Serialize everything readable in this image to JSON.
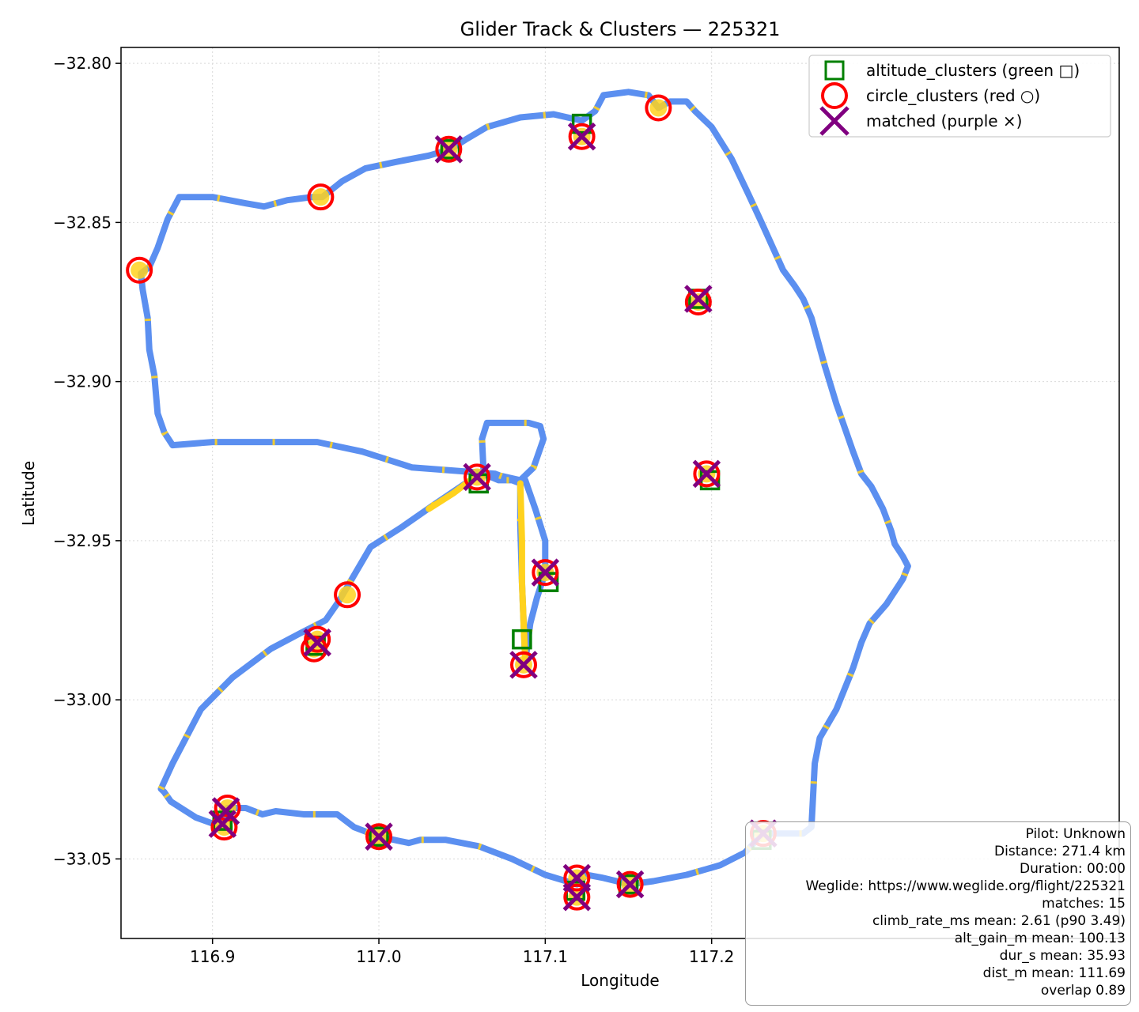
{
  "chart_data": {
    "type": "scatter",
    "title": "Glider Track & Clusters — 225321",
    "xlabel": "Longitude",
    "ylabel": "Latitude",
    "xlim": [
      116.845,
      117.445
    ],
    "ylim": [
      -33.075,
      -32.795
    ],
    "xticks": [
      116.9,
      117.0,
      117.1,
      117.2
    ],
    "xtick_labels": [
      "116.9",
      "117.0",
      "117.1",
      "117.2"
    ],
    "yticks": [
      -32.8,
      -32.85,
      -32.9,
      -32.95,
      -33.0,
      -33.05
    ],
    "ytick_labels": [
      "−32.80",
      "−32.85",
      "−32.90",
      "−32.95",
      "−33.00",
      "−33.05"
    ],
    "grid": true,
    "legend_position": "top-right",
    "colors": {
      "track": "#5b8ff0",
      "climb": "#ffd21e",
      "altitude_clusters": "#008000",
      "circle_clusters": "#ff0000",
      "matched": "#800080"
    },
    "series": [
      {
        "name": "altitude_clusters (green □)",
        "marker": "square",
        "points": [
          [
            117.06,
            -32.932
          ],
          [
            117.122,
            -32.819
          ],
          [
            117.199,
            -32.931
          ],
          [
            117.102,
            -32.963
          ],
          [
            117.086,
            -32.981
          ],
          [
            117.192,
            -32.874
          ],
          [
            116.906,
            -33.038
          ],
          [
            117.0,
            -33.043
          ],
          [
            117.118,
            -33.06
          ],
          [
            117.15,
            -33.058
          ],
          [
            117.23,
            -33.044
          ],
          [
            116.962,
            -32.983
          ],
          [
            117.043,
            -32.827
          ]
        ]
      },
      {
        "name": "circle_clusters (red ○)",
        "marker": "circle",
        "points": [
          [
            116.856,
            -32.865
          ],
          [
            116.965,
            -32.842
          ],
          [
            117.042,
            -32.827
          ],
          [
            117.122,
            -32.823
          ],
          [
            117.168,
            -32.814
          ],
          [
            117.192,
            -32.875
          ],
          [
            117.197,
            -32.929
          ],
          [
            117.059,
            -32.93
          ],
          [
            117.1,
            -32.96
          ],
          [
            116.981,
            -32.967
          ],
          [
            116.963,
            -32.981
          ],
          [
            116.961,
            -32.984
          ],
          [
            117.087,
            -32.989
          ],
          [
            116.909,
            -33.034
          ],
          [
            116.907,
            -33.04
          ],
          [
            117.0,
            -33.043
          ],
          [
            117.231,
            -33.042
          ],
          [
            117.119,
            -33.056
          ],
          [
            117.119,
            -33.062
          ],
          [
            117.151,
            -33.058
          ]
        ]
      },
      {
        "name": "matched (purple ×)",
        "marker": "x",
        "points": [
          [
            117.042,
            -32.827
          ],
          [
            117.122,
            -32.823
          ],
          [
            117.192,
            -32.874
          ],
          [
            117.197,
            -32.929
          ],
          [
            117.059,
            -32.93
          ],
          [
            117.1,
            -32.96
          ],
          [
            116.963,
            -32.982
          ],
          [
            117.087,
            -32.989
          ],
          [
            116.906,
            -33.039
          ],
          [
            117.0,
            -33.043
          ],
          [
            117.231,
            -33.042
          ],
          [
            117.119,
            -33.056
          ],
          [
            117.119,
            -33.062
          ],
          [
            117.151,
            -33.058
          ],
          [
            116.908,
            -33.035
          ]
        ]
      }
    ],
    "track": [
      [
        116.869,
        -33.028
      ],
      [
        116.876,
        -33.02
      ],
      [
        116.893,
        -33.003
      ],
      [
        116.912,
        -32.993
      ],
      [
        116.935,
        -32.984
      ],
      [
        116.953,
        -32.979
      ],
      [
        116.968,
        -32.975
      ],
      [
        116.976,
        -32.969
      ],
      [
        116.995,
        -32.952
      ],
      [
        117.013,
        -32.946
      ],
      [
        117.035,
        -32.938
      ],
      [
        117.052,
        -32.932
      ],
      [
        117.059,
        -32.93
      ],
      [
        117.068,
        -32.929
      ],
      [
        117.085,
        -32.931
      ],
      [
        117.093,
        -32.927
      ],
      [
        117.099,
        -32.918
      ],
      [
        117.097,
        -32.914
      ],
      [
        117.09,
        -32.913
      ],
      [
        117.07,
        -32.913
      ],
      [
        117.065,
        -32.913
      ],
      [
        117.062,
        -32.918
      ],
      [
        117.063,
        -32.929
      ],
      [
        117.072,
        -32.931
      ],
      [
        117.088,
        -32.931
      ],
      [
        117.094,
        -32.94
      ],
      [
        117.1,
        -32.95
      ],
      [
        117.1,
        -32.96
      ],
      [
        117.095,
        -32.968
      ],
      [
        117.091,
        -32.976
      ],
      [
        117.088,
        -32.988
      ],
      [
        117.087,
        -32.976
      ],
      [
        117.086,
        -32.963
      ],
      [
        117.085,
        -32.945
      ],
      [
        117.085,
        -32.932
      ],
      [
        117.07,
        -32.929
      ],
      [
        117.045,
        -32.928
      ],
      [
        117.02,
        -32.927
      ],
      [
        116.99,
        -32.922
      ],
      [
        116.963,
        -32.919
      ],
      [
        116.93,
        -32.919
      ],
      [
        116.9,
        -32.919
      ],
      [
        116.876,
        -32.92
      ],
      [
        116.871,
        -32.916
      ],
      [
        116.867,
        -32.91
      ],
      [
        116.865,
        -32.898
      ],
      [
        116.862,
        -32.89
      ],
      [
        116.861,
        -32.88
      ],
      [
        116.858,
        -32.871
      ],
      [
        116.857,
        -32.866
      ],
      [
        116.862,
        -32.864
      ],
      [
        116.867,
        -32.858
      ],
      [
        116.873,
        -32.849
      ],
      [
        116.88,
        -32.842
      ],
      [
        116.9,
        -32.842
      ],
      [
        116.92,
        -32.844
      ],
      [
        116.931,
        -32.845
      ],
      [
        116.945,
        -32.843
      ],
      [
        116.96,
        -32.842
      ],
      [
        116.966,
        -32.842
      ],
      [
        116.978,
        -32.837
      ],
      [
        116.992,
        -32.833
      ],
      [
        117.01,
        -32.831
      ],
      [
        117.03,
        -32.829
      ],
      [
        117.043,
        -32.827
      ],
      [
        117.052,
        -32.824
      ],
      [
        117.065,
        -32.82
      ],
      [
        117.085,
        -32.817
      ],
      [
        117.105,
        -32.816
      ],
      [
        117.122,
        -32.818
      ],
      [
        117.13,
        -32.815
      ],
      [
        117.135,
        -32.81
      ],
      [
        117.15,
        -32.809
      ],
      [
        117.162,
        -32.81
      ],
      [
        117.168,
        -32.814
      ],
      [
        117.175,
        -32.812
      ],
      [
        117.185,
        -32.812
      ],
      [
        117.19,
        -32.815
      ],
      [
        117.2,
        -32.82
      ],
      [
        117.212,
        -32.83
      ],
      [
        117.222,
        -32.841
      ],
      [
        117.23,
        -32.85
      ],
      [
        117.243,
        -32.865
      ],
      [
        117.25,
        -32.87
      ],
      [
        117.255,
        -32.874
      ],
      [
        117.26,
        -32.88
      ],
      [
        117.268,
        -32.895
      ],
      [
        117.275,
        -32.907
      ],
      [
        117.285,
        -32.922
      ],
      [
        117.29,
        -32.929
      ],
      [
        117.296,
        -32.933
      ],
      [
        117.303,
        -32.94
      ],
      [
        117.308,
        -32.947
      ],
      [
        117.31,
        -32.951
      ],
      [
        117.315,
        -32.955
      ],
      [
        117.318,
        -32.958
      ],
      [
        117.315,
        -32.962
      ],
      [
        117.305,
        -32.97
      ],
      [
        117.295,
        -32.976
      ],
      [
        117.29,
        -32.982
      ],
      [
        117.285,
        -32.99
      ],
      [
        117.275,
        -33.003
      ],
      [
        117.265,
        -33.012
      ],
      [
        117.262,
        -33.02
      ],
      [
        117.261,
        -33.03
      ],
      [
        117.26,
        -33.04
      ],
      [
        117.255,
        -33.042
      ],
      [
        117.231,
        -33.042
      ],
      [
        117.22,
        -33.048
      ],
      [
        117.205,
        -33.052
      ],
      [
        117.185,
        -33.055
      ],
      [
        117.165,
        -33.057
      ],
      [
        117.151,
        -33.058
      ],
      [
        117.135,
        -33.056
      ],
      [
        117.125,
        -33.055
      ],
      [
        117.119,
        -33.058
      ],
      [
        117.1,
        -33.055
      ],
      [
        117.08,
        -33.05
      ],
      [
        117.06,
        -33.046
      ],
      [
        117.04,
        -33.044
      ],
      [
        117.025,
        -33.044
      ],
      [
        117.018,
        -33.045
      ],
      [
        117.0,
        -33.043
      ],
      [
        116.985,
        -33.04
      ],
      [
        116.975,
        -33.036
      ],
      [
        116.955,
        -33.036
      ],
      [
        116.938,
        -33.035
      ],
      [
        116.93,
        -33.036
      ],
      [
        116.92,
        -33.034
      ],
      [
        116.909,
        -33.034
      ],
      [
        116.906,
        -33.04
      ],
      [
        116.89,
        -33.037
      ],
      [
        116.875,
        -33.032
      ],
      [
        116.871,
        -33.029
      ],
      [
        116.869,
        -33.028
      ]
    ],
    "climb_segments": [
      [
        [
          117.085,
          -32.932
        ],
        [
          117.086,
          -32.95
        ],
        [
          117.086,
          -32.963
        ],
        [
          117.087,
          -32.976
        ],
        [
          117.088,
          -32.988
        ]
      ],
      [
        [
          117.03,
          -32.94
        ],
        [
          117.045,
          -32.935
        ],
        [
          117.055,
          -32.931
        ]
      ]
    ]
  },
  "info_box": {
    "lines": [
      "Pilot: Unknown",
      "Distance: 271.4 km",
      "Duration: 00:00",
      "Weglide: https://www.weglide.org/flight/225321",
      "matches: 15",
      "climb_rate_ms mean: 2.61 (p90 3.49)",
      "alt_gain_m mean: 100.13",
      "dur_s mean: 35.93",
      "dist_m mean: 111.69",
      "overlap 0.89"
    ]
  }
}
